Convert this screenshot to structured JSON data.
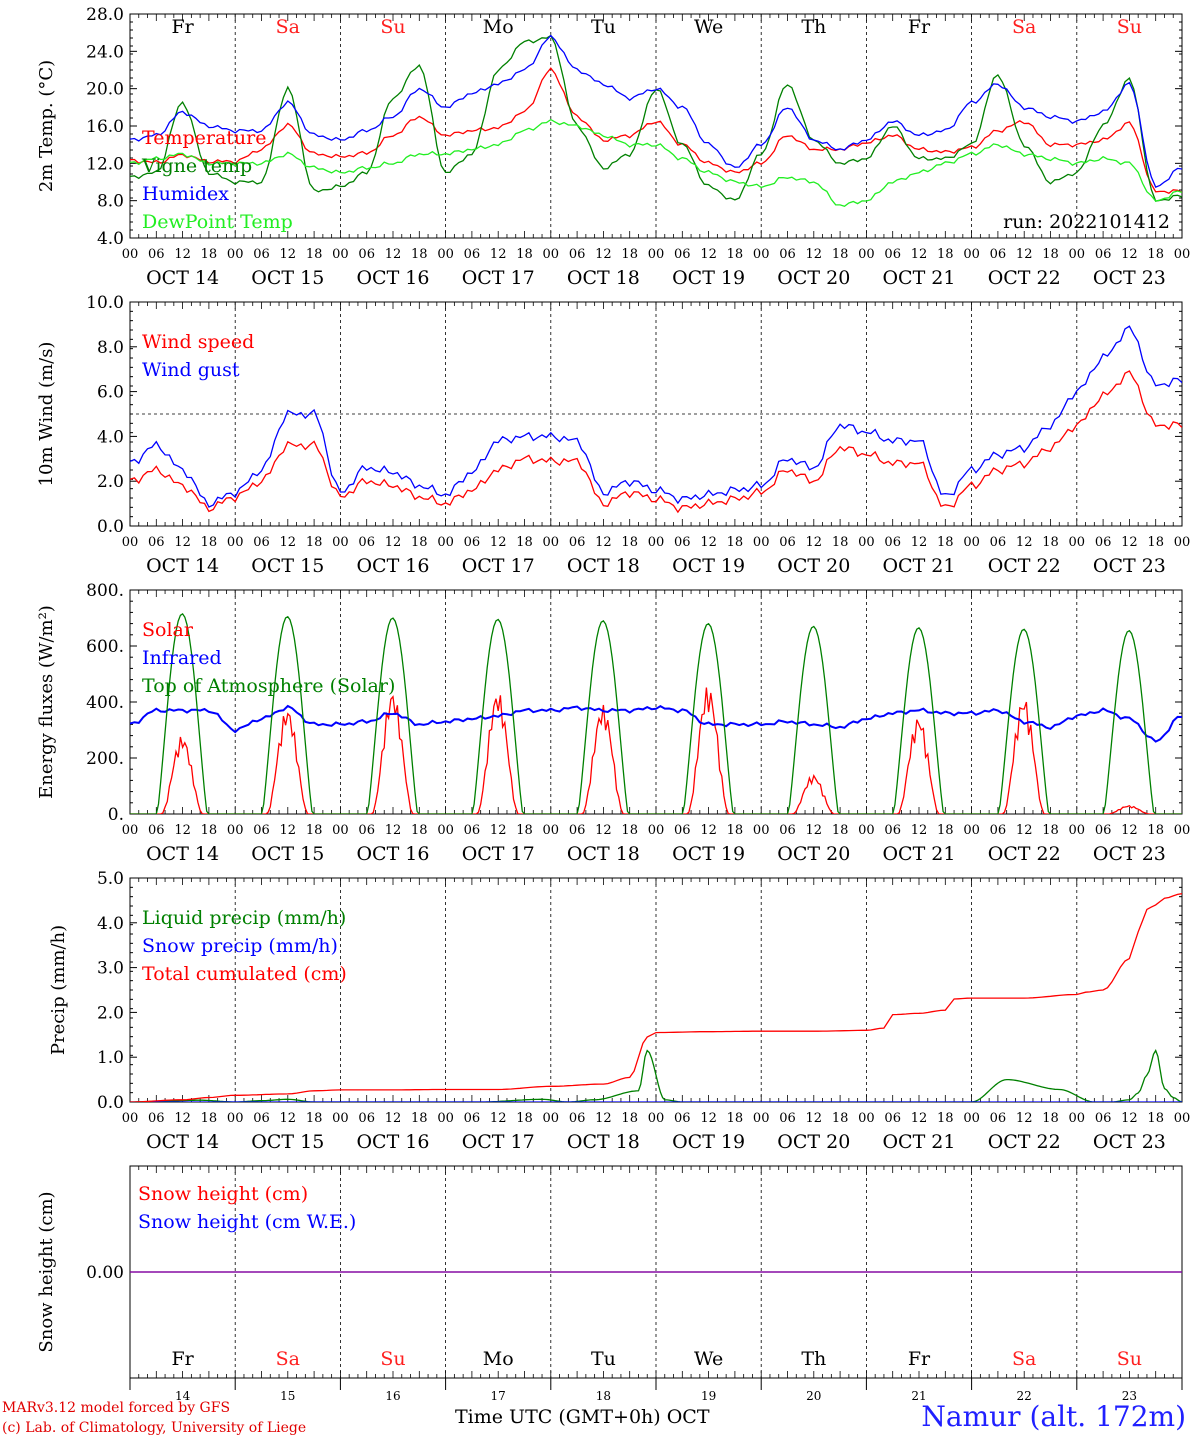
{
  "days": {
    "dates": [
      "OCT 14",
      "OCT 15",
      "OCT 16",
      "OCT 17",
      "OCT 18",
      "OCT 19",
      "OCT 20",
      "OCT 21",
      "OCT 22",
      "OCT 23"
    ],
    "weekdays": [
      "Fr",
      "Sa",
      "Su",
      "Mo",
      "Tu",
      "We",
      "Th",
      "Fr",
      "Sa",
      "Su"
    ],
    "day_numbers": [
      "14",
      "15",
      "16",
      "17",
      "18",
      "19",
      "20",
      "21",
      "22",
      "23"
    ],
    "hour_ticks": [
      "00",
      "06",
      "12",
      "18"
    ],
    "end_tick": "00",
    "weekend_color": "#ff2020",
    "weekday_color": "#000000"
  },
  "footer": {
    "credit_line1": "MARv3.12 model forced by GFS",
    "credit_line2": "(c) Lab. of Climatology, University of Liege",
    "xaxis_title": "Time UTC (GMT+0h) OCT",
    "station": "Namur (alt. 172m)"
  },
  "chart_data": [
    {
      "type": "line",
      "ylabel": "2m Temp. (°C)",
      "ylim": [
        4,
        28
      ],
      "yticks": [
        "4.0",
        "8.0",
        "12.0",
        "16.0",
        "20.0",
        "24.0",
        "28.0"
      ],
      "annotation": "run: 2022101412",
      "x_unit": "hours since OCT 14 00 UTC",
      "legend_placement": "top-left",
      "series": [
        {
          "name": "Temperature",
          "color": "#ff0000",
          "x": [
            0,
            6,
            12,
            18,
            24,
            30,
            36,
            42,
            48,
            54,
            60,
            66,
            72,
            78,
            84,
            90,
            96,
            102,
            108,
            114,
            120,
            126,
            132,
            138,
            144,
            150,
            156,
            162,
            168,
            174,
            180,
            186,
            192,
            198,
            204,
            210,
            216,
            222,
            228,
            234,
            240
          ],
          "values": [
            12.3,
            12.1,
            12.9,
            12.2,
            12.2,
            13.5,
            16.1,
            13.0,
            12.7,
            13.1,
            15.0,
            17.0,
            15.0,
            15.5,
            15.8,
            17.5,
            22.0,
            17.0,
            14.5,
            15.0,
            16.5,
            14.0,
            12.0,
            11.0,
            12.0,
            15.0,
            13.5,
            13.5,
            14.2,
            15.0,
            13.5,
            13.2,
            13.7,
            15.5,
            16.5,
            14.0,
            14.0,
            14.5,
            16.3,
            9.0,
            9.0
          ]
        },
        {
          "name": "Vigne temp",
          "color": "#008000",
          "x": [
            0,
            6,
            12,
            18,
            24,
            30,
            36,
            42,
            48,
            54,
            60,
            66,
            72,
            78,
            84,
            90,
            96,
            102,
            108,
            114,
            120,
            126,
            132,
            138,
            144,
            150,
            156,
            162,
            168,
            174,
            180,
            186,
            192,
            198,
            204,
            210,
            216,
            222,
            228,
            234,
            240
          ],
          "values": [
            10.5,
            11.0,
            18.5,
            11.0,
            10.0,
            10.0,
            20.0,
            9.0,
            9.5,
            11.0,
            19.0,
            22.5,
            11.0,
            13.0,
            22.0,
            25.0,
            25.5,
            16.0,
            11.5,
            13.0,
            20.0,
            14.0,
            9.5,
            8.0,
            13.0,
            20.5,
            14.5,
            12.0,
            12.5,
            16.0,
            12.5,
            12.5,
            14.0,
            21.5,
            14.0,
            10.0,
            11.0,
            16.0,
            21.0,
            8.0,
            8.5
          ]
        },
        {
          "name": "Humidex",
          "color": "#0000ff",
          "x": [
            0,
            6,
            12,
            18,
            24,
            30,
            36,
            42,
            48,
            54,
            60,
            66,
            72,
            78,
            84,
            90,
            96,
            102,
            108,
            114,
            120,
            126,
            132,
            138,
            144,
            150,
            156,
            162,
            168,
            174,
            180,
            186,
            192,
            198,
            204,
            210,
            216,
            222,
            228,
            234,
            240
          ],
          "values": [
            14.5,
            15.0,
            17.5,
            16.0,
            15.5,
            15.5,
            18.5,
            15.0,
            14.5,
            15.5,
            17.0,
            20.0,
            18.0,
            19.5,
            20.5,
            22.0,
            25.5,
            22.0,
            20.5,
            19.0,
            20.0,
            18.0,
            14.0,
            11.5,
            14.0,
            18.0,
            14.5,
            13.5,
            14.5,
            16.5,
            15.0,
            15.5,
            18.5,
            20.5,
            18.0,
            17.0,
            16.5,
            17.5,
            20.5,
            9.5,
            11.5
          ]
        },
        {
          "name": "DewPoint Temp",
          "color": "#22ee22",
          "x": [
            0,
            6,
            12,
            18,
            24,
            30,
            36,
            42,
            48,
            54,
            60,
            66,
            72,
            78,
            84,
            90,
            96,
            102,
            108,
            114,
            120,
            126,
            132,
            138,
            144,
            150,
            156,
            162,
            168,
            174,
            180,
            186,
            192,
            198,
            204,
            210,
            216,
            222,
            228,
            234,
            240
          ],
          "values": [
            12.0,
            12.5,
            13.0,
            12.0,
            12.0,
            12.0,
            13.0,
            11.5,
            11.0,
            11.5,
            12.0,
            13.0,
            13.0,
            13.5,
            14.0,
            15.5,
            16.5,
            16.0,
            15.0,
            14.0,
            14.0,
            12.5,
            11.0,
            10.0,
            9.5,
            10.5,
            10.0,
            7.5,
            8.0,
            10.0,
            11.0,
            12.0,
            13.0,
            14.0,
            13.0,
            12.5,
            12.0,
            12.5,
            12.0,
            8.0,
            9.0
          ]
        }
      ]
    },
    {
      "type": "line",
      "ylabel": "10m Wind (m/s)",
      "ylim": [
        0,
        10
      ],
      "yticks": [
        "0.0",
        "2.0",
        "4.0",
        "6.0",
        "8.0",
        "10.0"
      ],
      "reference_line": 5.0,
      "legend_placement": "top-left",
      "series": [
        {
          "name": "Wind speed",
          "color": "#ff0000",
          "x": [
            0,
            6,
            12,
            18,
            24,
            30,
            36,
            42,
            48,
            54,
            60,
            66,
            72,
            78,
            84,
            90,
            96,
            102,
            108,
            114,
            120,
            126,
            132,
            138,
            144,
            150,
            156,
            162,
            168,
            174,
            180,
            186,
            192,
            198,
            204,
            210,
            216,
            222,
            228,
            234,
            240
          ],
          "values": [
            2.0,
            2.5,
            1.8,
            0.8,
            1.3,
            2.0,
            3.6,
            3.6,
            1.3,
            2.0,
            1.8,
            1.3,
            1.0,
            1.6,
            2.5,
            3.0,
            2.9,
            2.9,
            1.0,
            1.5,
            1.2,
            0.8,
            1.0,
            1.2,
            1.5,
            2.5,
            2.0,
            3.5,
            3.2,
            2.8,
            2.8,
            0.8,
            1.8,
            2.5,
            2.8,
            3.5,
            4.5,
            5.8,
            6.8,
            4.5,
            4.5
          ]
        },
        {
          "name": "Wind gust",
          "color": "#0000ff",
          "x": [
            0,
            6,
            12,
            18,
            24,
            30,
            36,
            42,
            48,
            54,
            60,
            66,
            72,
            78,
            84,
            90,
            96,
            102,
            108,
            114,
            120,
            126,
            132,
            138,
            144,
            150,
            156,
            162,
            168,
            174,
            180,
            186,
            192,
            198,
            204,
            210,
            216,
            222,
            228,
            234,
            240
          ],
          "values": [
            2.8,
            3.6,
            2.5,
            1.0,
            1.5,
            2.5,
            5.0,
            5.0,
            1.5,
            2.6,
            2.4,
            1.8,
            1.4,
            2.4,
            3.8,
            4.0,
            4.0,
            3.8,
            1.5,
            2.0,
            1.6,
            1.2,
            1.4,
            1.6,
            1.8,
            3.0,
            2.6,
            4.5,
            4.2,
            3.8,
            3.8,
            1.3,
            2.5,
            3.2,
            3.5,
            4.5,
            6.0,
            7.5,
            8.8,
            6.3,
            6.5
          ]
        }
      ]
    },
    {
      "type": "line",
      "ylabel": "Energy fluxes (W/m²)",
      "ylim": [
        0,
        800
      ],
      "yticks": [
        "0.",
        "200.",
        "400.",
        "600.",
        "800."
      ],
      "legend_placement": "top-left",
      "series": [
        {
          "name": "Solar",
          "color": "#ff0000",
          "daily_peak": [
            280,
            380,
            440,
            440,
            390,
            460,
            140,
            350,
            420,
            30
          ]
        },
        {
          "name": "Infrared",
          "color": "#0000ff",
          "x": [
            0,
            6,
            12,
            18,
            24,
            30,
            36,
            42,
            48,
            54,
            60,
            66,
            72,
            78,
            84,
            90,
            96,
            102,
            108,
            114,
            120,
            126,
            132,
            138,
            144,
            150,
            156,
            162,
            168,
            174,
            180,
            186,
            192,
            198,
            204,
            210,
            216,
            222,
            228,
            234,
            240
          ],
          "values": [
            320,
            370,
            370,
            370,
            300,
            340,
            380,
            320,
            320,
            330,
            360,
            320,
            330,
            340,
            350,
            370,
            370,
            380,
            370,
            370,
            380,
            370,
            320,
            320,
            320,
            330,
            320,
            310,
            340,
            360,
            370,
            360,
            360,
            370,
            330,
            310,
            350,
            370,
            340,
            260,
            350
          ]
        },
        {
          "name": "Top of Atmosphere (Solar)",
          "color": "#008000",
          "daily_peak": [
            715,
            705,
            700,
            695,
            690,
            680,
            670,
            665,
            660,
            655
          ]
        }
      ]
    },
    {
      "type": "line",
      "ylabel": "Precip (mm/h)",
      "ylim": [
        0,
        5
      ],
      "yticks": [
        "0.0",
        "1.0",
        "2.0",
        "3.0",
        "4.0",
        "5.0"
      ],
      "legend_placement": "top-left",
      "series": [
        {
          "name": "Liquid precip (mm/h)",
          "color": "#008000",
          "x": [
            0,
            8,
            16,
            24,
            30,
            36,
            42,
            50,
            70,
            80,
            94,
            100,
            106,
            116,
            118,
            122,
            126,
            132,
            160,
            175,
            192,
            200,
            212,
            220,
            224,
            228,
            230,
            232,
            234,
            236,
            238,
            240
          ],
          "values": [
            0,
            0.02,
            0.04,
            0,
            0.03,
            0.06,
            0,
            0,
            0,
            0,
            0.06,
            0,
            0.05,
            0.25,
            1.15,
            0.05,
            0,
            0,
            0,
            0,
            0,
            0.5,
            0.28,
            0,
            0,
            0.05,
            0.2,
            0.6,
            1.15,
            0.3,
            0.1,
            0
          ]
        },
        {
          "name": "Snow precip (mm/h)",
          "color": "#0000ff",
          "x": [
            0,
            240
          ],
          "values": [
            0,
            0
          ]
        },
        {
          "name": "Total cumulated (cm)",
          "color": "#ff0000",
          "x": [
            0,
            12,
            18,
            24,
            36,
            42,
            48,
            60,
            72,
            84,
            96,
            108,
            114,
            118,
            120,
            132,
            144,
            156,
            168,
            172,
            174,
            180,
            186,
            188,
            192,
            204,
            216,
            218,
            222,
            228,
            230,
            232,
            234,
            236,
            240
          ],
          "values": [
            0,
            0.05,
            0.1,
            0.15,
            0.18,
            0.25,
            0.27,
            0.27,
            0.28,
            0.28,
            0.35,
            0.4,
            0.55,
            1.45,
            1.55,
            1.57,
            1.58,
            1.58,
            1.6,
            1.65,
            1.95,
            1.98,
            2.05,
            2.3,
            2.32,
            2.32,
            2.4,
            2.45,
            2.5,
            3.2,
            3.8,
            4.3,
            4.4,
            4.55,
            4.65
          ]
        }
      ]
    },
    {
      "type": "line",
      "ylabel": "Snow height (cm)",
      "yticks": [
        "0.00"
      ],
      "legend_placement": "top-left",
      "series": [
        {
          "name": "Snow height (cm)",
          "color": "#ff0000",
          "x": [
            0,
            240
          ],
          "values": [
            0,
            0
          ]
        },
        {
          "name": "Snow height (cm W.E.)",
          "color": "#0000ff",
          "x": [
            0,
            240
          ],
          "values": [
            0,
            0
          ]
        }
      ]
    }
  ]
}
